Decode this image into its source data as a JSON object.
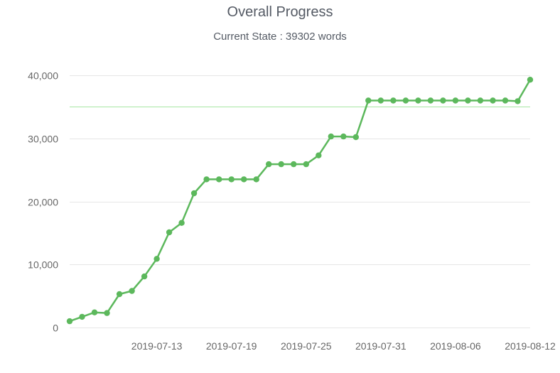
{
  "header": {
    "title": "Overall Progress",
    "subtitle": "Current State : 39302 words"
  },
  "chart_data": {
    "type": "line",
    "title": "Overall Progress",
    "subtitle": "Current State : 39302 words",
    "xlabel": "",
    "ylabel": "",
    "ylim": [
      0,
      40000
    ],
    "yticks": [
      0,
      10000,
      20000,
      30000,
      40000
    ],
    "ytick_labels": [
      "0",
      "10,000",
      "20,000",
      "30,000",
      "40,000"
    ],
    "xlim": [
      "2019-07-06",
      "2019-08-12"
    ],
    "xticks": [
      "2019-07-13",
      "2019-07-19",
      "2019-07-25",
      "2019-07-31",
      "2019-08-06",
      "2019-08-12"
    ],
    "x": [
      "2019-07-06",
      "2019-07-07",
      "2019-07-08",
      "2019-07-09",
      "2019-07-10",
      "2019-07-11",
      "2019-07-12",
      "2019-07-13",
      "2019-07-14",
      "2019-07-15",
      "2019-07-16",
      "2019-07-17",
      "2019-07-18",
      "2019-07-19",
      "2019-07-20",
      "2019-07-21",
      "2019-07-22",
      "2019-07-23",
      "2019-07-24",
      "2019-07-25",
      "2019-07-26",
      "2019-07-27",
      "2019-07-28",
      "2019-07-29",
      "2019-07-30",
      "2019-07-31",
      "2019-08-01",
      "2019-08-02",
      "2019-08-03",
      "2019-08-04",
      "2019-08-05",
      "2019-08-06",
      "2019-08-07",
      "2019-08-08",
      "2019-08-09",
      "2019-08-10",
      "2019-08-11",
      "2019-08-12"
    ],
    "series": [
      {
        "values": [
          1000,
          1700,
          2400,
          2300,
          5300,
          5800,
          8100,
          10900,
          15100,
          16600,
          21300,
          23500,
          23500,
          23500,
          23500,
          23500,
          25900,
          25900,
          25900,
          25900,
          27300,
          30300,
          30300,
          30200,
          36000,
          36000,
          36000,
          36000,
          36000,
          36000,
          36000,
          36000,
          36000,
          36000,
          36000,
          36000,
          35900,
          39302
        ],
        "color": "#5cb85c"
      }
    ],
    "reference_line": {
      "value": 35000,
      "color": "#a8e6a3"
    },
    "grid": true,
    "gridline_color": "#e6e6e6",
    "legend": "none",
    "marker": "circle"
  }
}
